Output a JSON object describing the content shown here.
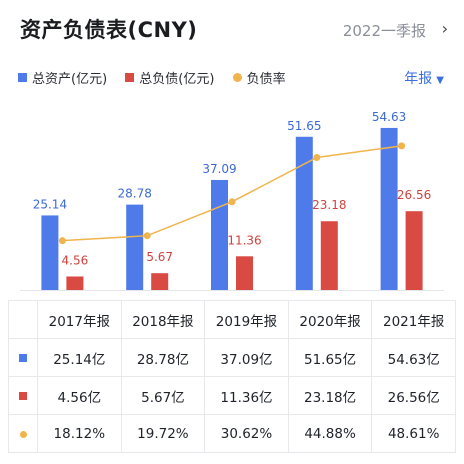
{
  "header": {
    "title": "资产负债表(CNY)",
    "period": "2022一季报"
  },
  "period_select": {
    "label": "年报"
  },
  "colors": {
    "assets": "#4f7bea",
    "liabilities": "#d94a43",
    "ratio": "#f0b44c"
  },
  "chart_data": {
    "type": "bar",
    "categories": [
      "2017年报",
      "2018年报",
      "2019年报",
      "2020年报",
      "2021年报"
    ],
    "series": [
      {
        "name": "总资产(亿元)",
        "values": [
          25.14,
          28.78,
          37.09,
          51.65,
          54.63
        ],
        "labels": [
          "25.14",
          "28.78",
          "37.09",
          "51.65",
          "54.63"
        ]
      },
      {
        "name": "总负债(亿元)",
        "values": [
          4.56,
          5.67,
          11.36,
          23.18,
          26.56
        ],
        "labels": [
          "4.56",
          "5.67",
          "11.36",
          "23.18",
          "26.56"
        ]
      },
      {
        "name": "负债率",
        "type": "line",
        "values": [
          18.12,
          19.72,
          30.62,
          44.88,
          48.61
        ]
      }
    ],
    "legend_position": "top-left",
    "grid": false
  },
  "table": {
    "headers": [
      "2017年报",
      "2018年报",
      "2019年报",
      "2020年报",
      "2021年报"
    ],
    "rows": [
      [
        "25.14亿",
        "28.78亿",
        "37.09亿",
        "51.65亿",
        "54.63亿"
      ],
      [
        "4.56亿",
        "5.67亿",
        "11.36亿",
        "23.18亿",
        "26.56亿"
      ],
      [
        "18.12%",
        "19.72%",
        "30.62%",
        "44.88%",
        "48.61%"
      ]
    ]
  }
}
